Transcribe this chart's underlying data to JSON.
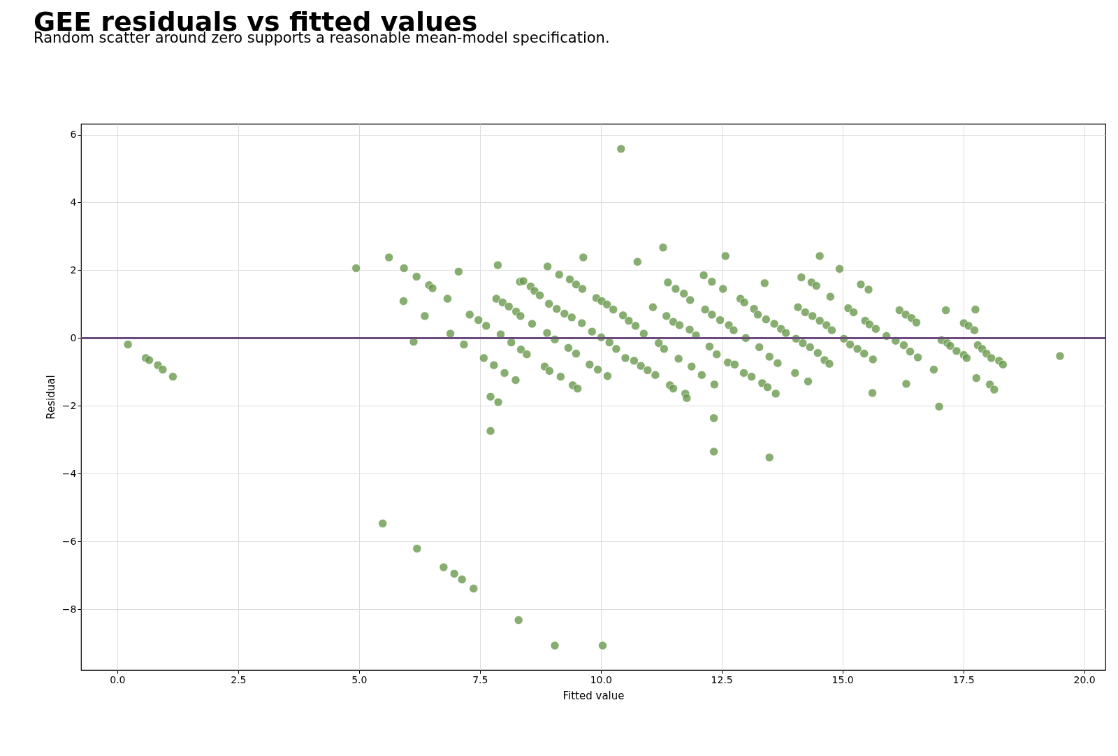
{
  "chart_data": {
    "type": "scatter",
    "title": "GEE residuals vs fitted values",
    "subtitle": "Random scatter around zero supports a reasonable mean-model specification.",
    "xlabel": "Fitted value",
    "ylabel": "Residual",
    "xlim": [
      -0.75,
      20.44
    ],
    "ylim": [
      -9.79,
      6.32
    ],
    "xticks": [
      {
        "value": 0,
        "label": "0.0"
      },
      {
        "value": 2.5,
        "label": "2.5"
      },
      {
        "value": 5,
        "label": "5.0"
      },
      {
        "value": 7.5,
        "label": "7.5"
      },
      {
        "value": 10,
        "label": "10.0"
      },
      {
        "value": 12.5,
        "label": "12.5"
      },
      {
        "value": 15,
        "label": "15.0"
      },
      {
        "value": 17.5,
        "label": "17.5"
      },
      {
        "value": 20,
        "label": "20.0"
      }
    ],
    "yticks": [
      {
        "value": -8,
        "label": "−8"
      },
      {
        "value": -6,
        "label": "−6"
      },
      {
        "value": -4,
        "label": "−4"
      },
      {
        "value": -2,
        "label": "−2"
      },
      {
        "value": 0,
        "label": "0"
      },
      {
        "value": 2,
        "label": "2"
      },
      {
        "value": 4,
        "label": "4"
      },
      {
        "value": 6,
        "label": "6"
      }
    ],
    "grid": true,
    "marker": "circle",
    "legend": false,
    "ref_lines": [
      {
        "axis": "y",
        "value": 0,
        "color": "#6b4a7d"
      }
    ],
    "series": [
      {
        "color": "#6a994e",
        "x": [
          0.22,
          0.59,
          0.66,
          0.84,
          0.94,
          1.15,
          4.94,
          5.62,
          5.93,
          5.92,
          6.19,
          6.36,
          6.13,
          6.45,
          6.52,
          6.83,
          6.89,
          7.06,
          7.17,
          7.29,
          7.47,
          7.58,
          7.63,
          7.72,
          7.72,
          7.79,
          7.87,
          7.88,
          7.84,
          7.93,
          7.97,
          8.01,
          8.1,
          8.15,
          8.25,
          8.24,
          8.34,
          8.33,
          8.4,
          8.35,
          8.47,
          8.55,
          8.58,
          8.63,
          8.74,
          8.89,
          8.84,
          8.94,
          8.9,
          8.93,
          9.05,
          9.09,
          9.14,
          9.17,
          9.25,
          9.33,
          9.36,
          9.4,
          9.42,
          9.49,
          9.52,
          9.49,
          9.62,
          9.61,
          9.64,
          9.77,
          9.82,
          9.91,
          9.94,
          10.01,
          10.02,
          10.14,
          10.13,
          10.18,
          10.26,
          10.32,
          10.42,
          10.46,
          10.51,
          10.58,
          10.69,
          10.72,
          10.76,
          10.83,
          10.89,
          10.97,
          11.08,
          11.13,
          11.2,
          11.29,
          11.31,
          11.36,
          11.39,
          11.43,
          11.5,
          11.55,
          11.5,
          11.61,
          11.63,
          11.72,
          11.75,
          11.78,
          11.84,
          11.85,
          11.88,
          11.97,
          12.09,
          12.13,
          12.16,
          12.25,
          12.3,
          12.34,
          12.34,
          12.35,
          12.3,
          12.4,
          12.47,
          12.53,
          12.58,
          12.63,
          12.65,
          12.75,
          12.77,
          12.89,
          12.97,
          12.96,
          13.0,
          13.12,
          13.17,
          13.25,
          13.28,
          13.34,
          13.39,
          13.42,
          13.45,
          13.49,
          13.49,
          13.59,
          13.62,
          13.66,
          13.73,
          13.83,
          14.02,
          14.08,
          14.04,
          14.15,
          14.18,
          14.23,
          14.29,
          14.33,
          14.38,
          14.36,
          14.46,
          14.49,
          14.53,
          14.53,
          14.63,
          14.67,
          14.73,
          14.75,
          14.78,
          14.94,
          15.03,
          15.12,
          15.16,
          15.23,
          15.31,
          15.38,
          15.45,
          15.47,
          15.54,
          15.56,
          15.62,
          15.63,
          15.69,
          15.91,
          16.1,
          16.18,
          16.27,
          16.31,
          16.32,
          16.4,
          16.43,
          16.53,
          16.56,
          16.89,
          17.0,
          17.05,
          17.14,
          17.17,
          17.23,
          17.36,
          17.51,
          17.57,
          17.51,
          17.61,
          17.73,
          17.75,
          17.77,
          17.8,
          17.89,
          17.98,
          18.08,
          18.05,
          18.14,
          18.24,
          18.32,
          19.5,
          5.49,
          6.2,
          6.75,
          6.97,
          7.13,
          7.37,
          8.3,
          9.05,
          10.04
        ],
        "values": [
          -0.19,
          -0.59,
          -0.65,
          -0.8,
          -0.93,
          -1.14,
          2.06,
          2.38,
          2.06,
          1.09,
          1.81,
          0.65,
          -0.11,
          1.56,
          1.47,
          1.16,
          0.13,
          1.96,
          -0.19,
          0.69,
          0.53,
          -0.59,
          0.36,
          -2.74,
          -1.73,
          -0.8,
          2.15,
          -1.89,
          1.16,
          0.11,
          1.05,
          -1.03,
          0.93,
          -0.13,
          0.78,
          -1.24,
          0.65,
          1.66,
          1.68,
          -0.34,
          -0.48,
          1.52,
          0.42,
          1.39,
          1.26,
          0.15,
          -0.84,
          -0.97,
          2.11,
          1.01,
          -0.04,
          0.86,
          1.87,
          -1.14,
          0.72,
          -0.29,
          1.73,
          0.61,
          -1.39,
          1.58,
          -1.49,
          -0.46,
          1.45,
          0.44,
          2.38,
          -0.78,
          0.19,
          1.18,
          -0.93,
          0.02,
          1.09,
          -1.12,
          0.99,
          -0.13,
          0.84,
          -0.32,
          5.58,
          0.67,
          -0.59,
          0.51,
          -0.67,
          0.36,
          2.25,
          -0.82,
          0.13,
          -0.95,
          0.91,
          -1.09,
          -0.15,
          2.67,
          -0.32,
          0.65,
          1.64,
          -1.39,
          0.48,
          1.45,
          -1.49,
          -0.61,
          0.38,
          1.31,
          -1.64,
          -1.77,
          0.25,
          1.12,
          -0.84,
          0.08,
          -1.09,
          1.85,
          0.84,
          -0.25,
          0.69,
          -3.35,
          -2.36,
          -1.37,
          1.66,
          -0.48,
          0.53,
          1.45,
          2.42,
          -0.72,
          0.38,
          0.23,
          -0.78,
          1.16,
          1.05,
          -1.03,
          0.0,
          -1.14,
          0.86,
          0.69,
          -0.27,
          -1.33,
          1.62,
          0.55,
          -1.45,
          -3.52,
          -0.55,
          0.42,
          -1.64,
          -0.74,
          0.27,
          0.15,
          -1.03,
          0.91,
          -0.02,
          1.79,
          -0.15,
          0.76,
          -1.28,
          -0.27,
          0.65,
          1.64,
          1.54,
          -0.44,
          0.51,
          2.42,
          -0.65,
          0.38,
          -0.76,
          1.22,
          0.23,
          2.04,
          -0.02,
          0.88,
          -0.19,
          0.76,
          -0.32,
          1.58,
          -0.46,
          0.51,
          1.43,
          0.4,
          -1.62,
          -0.63,
          0.27,
          0.06,
          -0.08,
          0.82,
          -0.21,
          0.69,
          -1.35,
          -0.4,
          0.59,
          0.46,
          -0.57,
          -0.93,
          -2.02,
          -0.06,
          0.82,
          -0.15,
          -0.23,
          -0.38,
          -0.5,
          -0.59,
          0.44,
          0.36,
          0.23,
          0.84,
          -1.18,
          -0.21,
          -0.32,
          -0.46,
          -0.59,
          -1.37,
          -1.52,
          -0.67,
          -0.78,
          -0.53,
          -5.47,
          -6.21,
          -6.76,
          -6.95,
          -7.12,
          -7.39,
          -8.32,
          -9.07,
          -9.07
        ]
      }
    ]
  }
}
